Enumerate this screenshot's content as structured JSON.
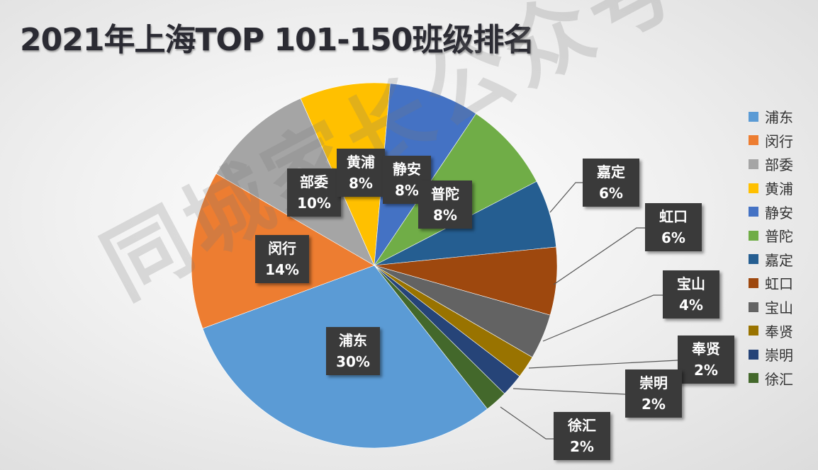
{
  "chart_data": {
    "type": "pie",
    "title": "2021年上海TOP 101-150班级排名",
    "categories": [
      "浦东",
      "闵行",
      "部委",
      "黄浦",
      "静安",
      "普陀",
      "嘉定",
      "虹口",
      "宝山",
      "奉贤",
      "崇明",
      "徐汇"
    ],
    "values": [
      30,
      14,
      10,
      8,
      8,
      8,
      6,
      6,
      4,
      2,
      2,
      2
    ],
    "unit": "%",
    "colors": [
      "#5b9bd5",
      "#ed7d31",
      "#a5a5a5",
      "#ffc000",
      "#4472c4",
      "#70ad47",
      "#255e91",
      "#9e480e",
      "#636363",
      "#997300",
      "#264478",
      "#43682b"
    ],
    "legend_position": "right",
    "data_labels": [
      {
        "name": "浦东",
        "pct": "30%"
      },
      {
        "name": "闵行",
        "pct": "14%"
      },
      {
        "name": "部委",
        "pct": "10%"
      },
      {
        "name": "黄浦",
        "pct": "8%"
      },
      {
        "name": "静安",
        "pct": "8%"
      },
      {
        "name": "普陀",
        "pct": "8%"
      },
      {
        "name": "嘉定",
        "pct": "6%"
      },
      {
        "name": "虹口",
        "pct": "6%"
      },
      {
        "name": "宝山",
        "pct": "4%"
      },
      {
        "name": "奉贤",
        "pct": "2%"
      },
      {
        "name": "崇明",
        "pct": "2%"
      },
      {
        "name": "徐汇",
        "pct": "2%"
      }
    ]
  },
  "legend": {
    "items": [
      "浦东",
      "闵行",
      "部委",
      "黄浦",
      "静安",
      "普陀",
      "嘉定",
      "虹口",
      "宝山",
      "奉贤",
      "崇明",
      "徐汇"
    ]
  },
  "watermark": "同城家长公众号"
}
